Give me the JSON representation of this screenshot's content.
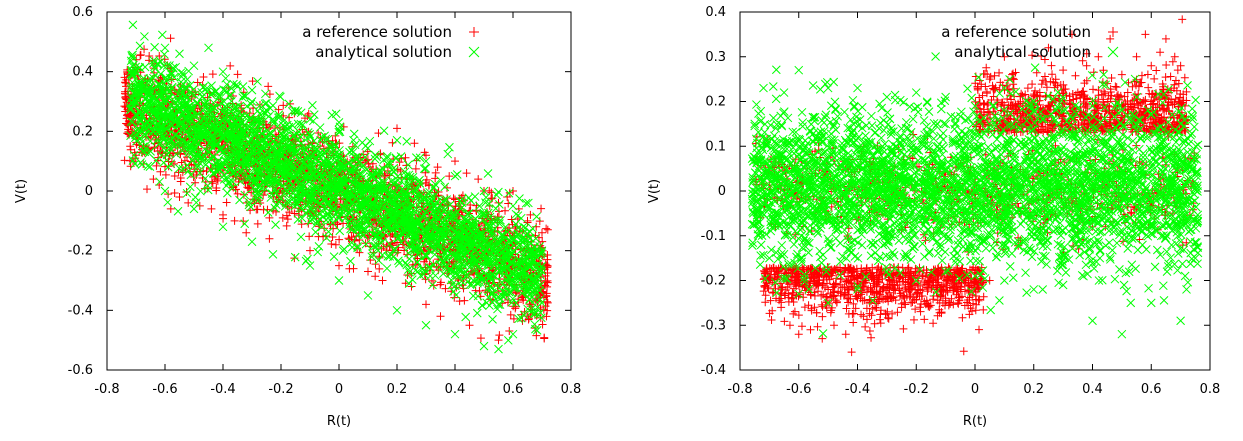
{
  "chart_data": [
    {
      "type": "scatter",
      "xlabel": "R(t)",
      "ylabel": "V(t)",
      "xlim": [
        -0.8,
        0.8
      ],
      "ylim": [
        -0.6,
        0.6
      ],
      "xticks": [
        "-0.8",
        "-0.6",
        "-0.4",
        "-0.2",
        "0",
        "0.2",
        "0.4",
        "0.6",
        "0.8"
      ],
      "yticks": [
        "-0.6",
        "-0.4",
        "-0.2",
        "0",
        "0.2",
        "0.4",
        "0.6"
      ],
      "legend_position": "top-right",
      "grid": false,
      "series": [
        {
          "name": "a reference solution",
          "marker": "plus",
          "color": "#ff0000",
          "points": [
            [
              -0.72,
              0.15
            ],
            [
              -0.7,
              0.12
            ],
            [
              -0.68,
              0.13
            ],
            [
              -0.64,
              0.04
            ],
            [
              -0.62,
              0.02
            ],
            [
              -0.58,
              -0.06
            ],
            [
              -0.55,
              -0.02
            ],
            [
              -0.52,
              -0.04
            ],
            [
              -0.48,
              -0.05
            ],
            [
              -0.44,
              -0.06
            ],
            [
              -0.4,
              -0.08
            ],
            [
              -0.36,
              -0.1
            ],
            [
              -0.32,
              -0.14
            ],
            [
              -0.28,
              -0.11
            ],
            [
              -0.24,
              -0.16
            ],
            [
              -0.1,
              -0.2
            ],
            [
              0.0,
              -0.25
            ],
            [
              0.05,
              -0.26
            ],
            [
              0.1,
              -0.27
            ],
            [
              0.15,
              -0.3
            ],
            [
              0.25,
              -0.32
            ],
            [
              0.3,
              -0.38
            ],
            [
              0.35,
              -0.42
            ],
            [
              0.45,
              -0.45
            ],
            [
              0.55,
              -0.5
            ],
            [
              0.2,
              0.21
            ],
            [
              0.26,
              0.16
            ],
            [
              0.3,
              0.12
            ],
            [
              0.34,
              0.08
            ],
            [
              0.38,
              0.05
            ],
            [
              0.4,
              0.1
            ],
            [
              0.44,
              0.06
            ],
            [
              0.48,
              0.04
            ],
            [
              0.5,
              0.0
            ],
            [
              0.52,
              -0.05
            ],
            [
              0.55,
              -0.04
            ],
            [
              0.58,
              -0.02
            ],
            [
              0.6,
              0.0
            ],
            [
              0.62,
              -0.06
            ],
            [
              0.65,
              -0.1
            ],
            [
              0.68,
              -0.12
            ],
            [
              0.7,
              -0.14
            ],
            [
              0.72,
              -0.13
            ],
            [
              0.66,
              -0.08
            ]
          ]
        },
        {
          "name": "analytical solution",
          "marker": "cross",
          "color": "#00ff00",
          "points": [
            [
              -0.6,
              0.48
            ],
            [
              -0.55,
              0.46
            ],
            [
              -0.45,
              0.48
            ],
            [
              -0.5,
              0.42
            ],
            [
              -0.4,
              0.4
            ],
            [
              -0.7,
              0.2
            ],
            [
              -0.65,
              0.3
            ],
            [
              -0.35,
              0.35
            ],
            [
              -0.3,
              0.3
            ],
            [
              -0.25,
              0.27
            ],
            [
              -0.15,
              0.27
            ],
            [
              -0.1,
              0.24
            ],
            [
              0.0,
              0.23
            ],
            [
              0.05,
              0.17
            ],
            [
              0.2,
              0.17
            ],
            [
              0.3,
              0.1
            ],
            [
              0.4,
              0.05
            ],
            [
              0.5,
              0.0
            ],
            [
              0.6,
              -0.05
            ],
            [
              0.7,
              -0.2
            ],
            [
              0.6,
              -0.48
            ],
            [
              0.55,
              -0.53
            ],
            [
              0.5,
              -0.52
            ],
            [
              0.4,
              -0.48
            ],
            [
              0.3,
              -0.45
            ],
            [
              0.2,
              -0.4
            ],
            [
              0.1,
              -0.35
            ],
            [
              0.0,
              -0.3
            ],
            [
              -0.1,
              -0.25
            ],
            [
              -0.3,
              -0.17
            ],
            [
              -0.4,
              -0.12
            ],
            [
              -0.5,
              -0.06
            ],
            [
              -0.6,
              0.0
            ],
            [
              -0.55,
              0.2
            ],
            [
              0.0,
              0.0
            ]
          ]
        }
      ]
    },
    {
      "type": "scatter",
      "xlabel": "R(t)",
      "ylabel": "V(t)",
      "xlim": [
        -0.8,
        0.8
      ],
      "ylim": [
        -0.4,
        0.4
      ],
      "xticks": [
        "-0.8",
        "-0.6",
        "-0.4",
        "-0.2",
        "0",
        "0.2",
        "0.4",
        "0.6",
        "0.8"
      ],
      "yticks": [
        "-0.4",
        "-0.3",
        "-0.2",
        "-0.1",
        "0",
        "0.1",
        "0.2",
        "0.3",
        "0.4"
      ],
      "legend_position": "top-right",
      "grid": false,
      "series": [
        {
          "name": "a reference solution",
          "marker": "plus",
          "color": "#ff0000",
          "points": [
            [
              -0.7,
              -0.2
            ],
            [
              -0.66,
              -0.26
            ],
            [
              -0.63,
              -0.3
            ],
            [
              -0.6,
              -0.32
            ],
            [
              -0.56,
              -0.31
            ],
            [
              -0.52,
              -0.33
            ],
            [
              -0.48,
              -0.3
            ],
            [
              -0.44,
              -0.32
            ],
            [
              -0.42,
              -0.36
            ],
            [
              -0.38,
              -0.28
            ],
            [
              -0.34,
              -0.26
            ],
            [
              -0.3,
              -0.24
            ],
            [
              -0.25,
              -0.26
            ],
            [
              -0.2,
              -0.23
            ],
            [
              -0.12,
              -0.25
            ],
            [
              -0.05,
              -0.22
            ],
            [
              0.05,
              -0.2
            ],
            [
              -0.6,
              -0.2
            ],
            [
              -0.5,
              -0.22
            ],
            [
              -0.4,
              -0.24
            ],
            [
              0.05,
              0.25
            ],
            [
              0.1,
              0.3
            ],
            [
              0.18,
              0.23
            ],
            [
              0.25,
              0.32
            ],
            [
              0.3,
              0.27
            ],
            [
              0.33,
              0.35
            ],
            [
              0.38,
              0.28
            ],
            [
              0.42,
              0.3
            ],
            [
              0.46,
              0.34
            ],
            [
              0.5,
              0.26
            ],
            [
              0.55,
              0.3
            ],
            [
              0.58,
              0.35
            ],
            [
              0.6,
              0.28
            ],
            [
              0.63,
              0.31
            ],
            [
              0.65,
              0.34
            ],
            [
              0.68,
              0.3
            ],
            [
              0.7,
              0.28
            ],
            [
              0.66,
              0.22
            ],
            [
              0.6,
              0.2
            ],
            [
              0.52,
              0.22
            ],
            [
              0.45,
              0.24
            ],
            [
              0.4,
              0.2
            ],
            [
              0.35,
              0.22
            ],
            [
              0.7,
              0.15
            ]
          ]
        },
        {
          "name": "analytical solution",
          "marker": "cross",
          "color": "#00ff00",
          "points": [
            [
              -0.75,
              0.15
            ],
            [
              -0.72,
              0.23
            ],
            [
              -0.65,
              0.22
            ],
            [
              -0.6,
              0.27
            ],
            [
              -0.5,
              0.23
            ],
            [
              -0.4,
              0.23
            ],
            [
              -0.3,
              0.21
            ],
            [
              -0.2,
              0.22
            ],
            [
              -0.1,
              0.21
            ],
            [
              0.0,
              0.19
            ],
            [
              0.1,
              0.23
            ],
            [
              0.2,
              0.2
            ],
            [
              0.3,
              0.18
            ],
            [
              0.4,
              0.19
            ],
            [
              0.5,
              0.18
            ],
            [
              0.6,
              0.17
            ],
            [
              0.7,
              0.15
            ],
            [
              -0.7,
              -0.15
            ],
            [
              -0.6,
              -0.23
            ],
            [
              -0.5,
              -0.25
            ],
            [
              -0.4,
              -0.22
            ],
            [
              -0.3,
              -0.18
            ],
            [
              -0.2,
              -0.2
            ],
            [
              -0.1,
              -0.18
            ],
            [
              0.0,
              -0.19
            ],
            [
              0.1,
              -0.2
            ],
            [
              0.2,
              -0.22
            ],
            [
              0.3,
              -0.21
            ],
            [
              0.4,
              -0.29
            ],
            [
              0.5,
              -0.32
            ],
            [
              0.6,
              -0.25
            ],
            [
              0.7,
              -0.29
            ],
            [
              0.72,
              -0.22
            ],
            [
              0.75,
              -0.15
            ],
            [
              0.0,
              0.0
            ]
          ]
        }
      ]
    }
  ]
}
